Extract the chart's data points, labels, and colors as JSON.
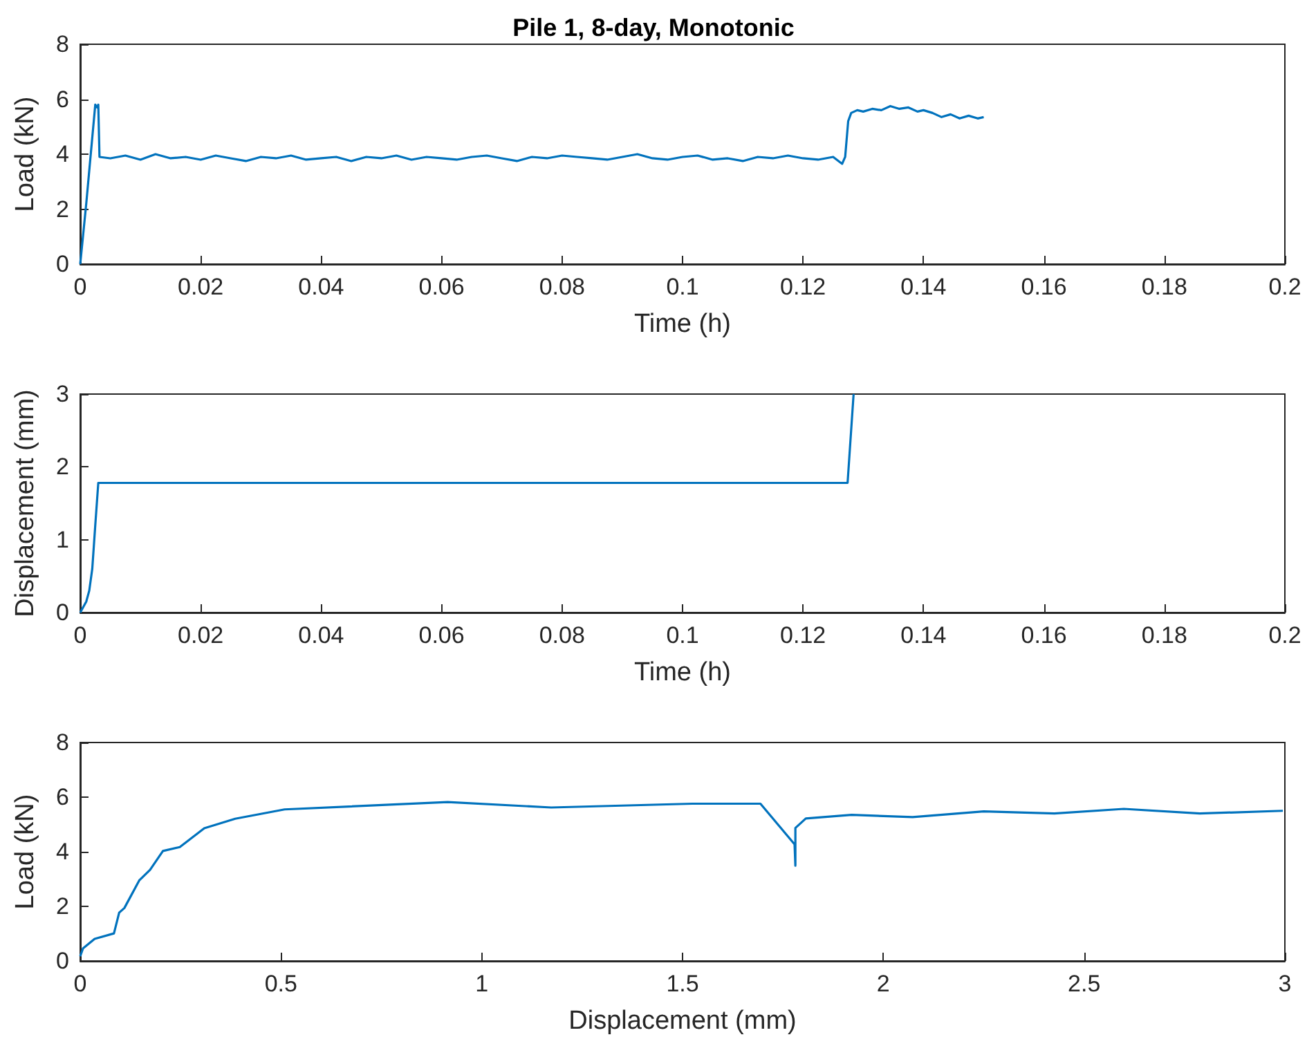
{
  "chart_data": [
    {
      "type": "line",
      "title": "Pile 1, 8-day, Monotonic",
      "xlabel": "Time (h)",
      "ylabel": "Load (kN)",
      "color": "#0072bd",
      "marker": "none",
      "line_style": "solid",
      "grid": false,
      "x": [
        0,
        0.001,
        0.002,
        0.0025,
        0.0028,
        0.003,
        0.0032,
        0.005,
        0.0075,
        0.01,
        0.0125,
        0.015,
        0.0175,
        0.02,
        0.0225,
        0.025,
        0.0275,
        0.03,
        0.0325,
        0.035,
        0.0375,
        0.04,
        0.0425,
        0.045,
        0.0475,
        0.05,
        0.0525,
        0.055,
        0.0575,
        0.06,
        0.0625,
        0.065,
        0.0675,
        0.07,
        0.0725,
        0.075,
        0.0775,
        0.08,
        0.0825,
        0.085,
        0.0875,
        0.09,
        0.0925,
        0.095,
        0.0975,
        0.1,
        0.1025,
        0.105,
        0.1075,
        0.11,
        0.1125,
        0.115,
        0.1175,
        0.12,
        0.1225,
        0.125,
        0.1265,
        0.127,
        0.1275,
        0.128,
        0.129,
        0.13,
        0.1315,
        0.133,
        0.1345,
        0.136,
        0.1375,
        0.139,
        0.14,
        0.1415,
        0.143,
        0.1445,
        0.146,
        0.1475,
        0.149,
        0.15
      ],
      "values": [
        0,
        2.2,
        4.6,
        5.8,
        5.7,
        5.8,
        3.9,
        3.85,
        3.95,
        3.8,
        4.0,
        3.85,
        3.9,
        3.8,
        3.95,
        3.85,
        3.75,
        3.9,
        3.85,
        3.95,
        3.8,
        3.85,
        3.9,
        3.75,
        3.9,
        3.85,
        3.95,
        3.8,
        3.9,
        3.85,
        3.8,
        3.9,
        3.95,
        3.85,
        3.75,
        3.9,
        3.85,
        3.95,
        3.9,
        3.85,
        3.8,
        3.9,
        4.0,
        3.85,
        3.8,
        3.9,
        3.95,
        3.8,
        3.85,
        3.75,
        3.9,
        3.85,
        3.95,
        3.85,
        3.8,
        3.9,
        3.65,
        3.9,
        5.2,
        5.5,
        5.6,
        5.55,
        5.65,
        5.6,
        5.75,
        5.65,
        5.7,
        5.55,
        5.6,
        5.5,
        5.35,
        5.45,
        5.3,
        5.4,
        5.3,
        5.35
      ],
      "xlim": [
        0,
        0.2
      ],
      "xticks": [
        0,
        0.02,
        0.04,
        0.06,
        0.08,
        0.1,
        0.12,
        0.14,
        0.16,
        0.18,
        0.2
      ],
      "ylim": [
        0,
        8
      ],
      "yticks": [
        0,
        2,
        4,
        6,
        8
      ]
    },
    {
      "type": "line",
      "xlabel": "Time (h)",
      "ylabel": "Displacement (mm)",
      "color": "#0072bd",
      "marker": "none",
      "line_style": "solid",
      "grid": false,
      "x": [
        0,
        0.001,
        0.0015,
        0.002,
        0.0025,
        0.003,
        0.1274,
        0.1284
      ],
      "values": [
        0,
        0.15,
        0.3,
        0.6,
        1.2,
        1.78,
        1.78,
        3
      ],
      "xlim": [
        0,
        0.2
      ],
      "xticks": [
        0,
        0.02,
        0.04,
        0.06,
        0.08,
        0.1,
        0.12,
        0.14,
        0.16,
        0.18,
        0.2
      ],
      "ylim": [
        0,
        3
      ],
      "yticks": [
        0,
        1,
        2,
        3
      ]
    },
    {
      "type": "line",
      "xlabel": "Displacement (mm)",
      "ylabel": "Load (kN)",
      "color": "#0072bd",
      "marker": "none",
      "line_style": "solid",
      "grid": false,
      "x": [
        0,
        0.007,
        0.036,
        0.084,
        0.097,
        0.11,
        0.147,
        0.174,
        0.206,
        0.248,
        0.309,
        0.386,
        0.509,
        0.915,
        1.173,
        1.524,
        1.694,
        1.779,
        1.781,
        1.781,
        1.807,
        1.921,
        2.073,
        2.25,
        2.426,
        2.599,
        2.788,
        2.995
      ],
      "values": [
        0.17,
        0.46,
        0.81,
        1.01,
        1.77,
        1.94,
        2.95,
        3.34,
        4.03,
        4.17,
        4.86,
        5.21,
        5.55,
        5.82,
        5.62,
        5.76,
        5.76,
        4.27,
        3.49,
        4.87,
        5.22,
        5.35,
        5.27,
        5.48,
        5.4,
        5.57,
        5.4,
        5.5
      ],
      "xlim": [
        0,
        3
      ],
      "xticks": [
        0,
        0.5,
        1,
        1.5,
        2,
        2.5,
        3
      ],
      "ylim": [
        0,
        8
      ],
      "yticks": [
        0,
        2,
        4,
        6,
        8
      ]
    }
  ]
}
